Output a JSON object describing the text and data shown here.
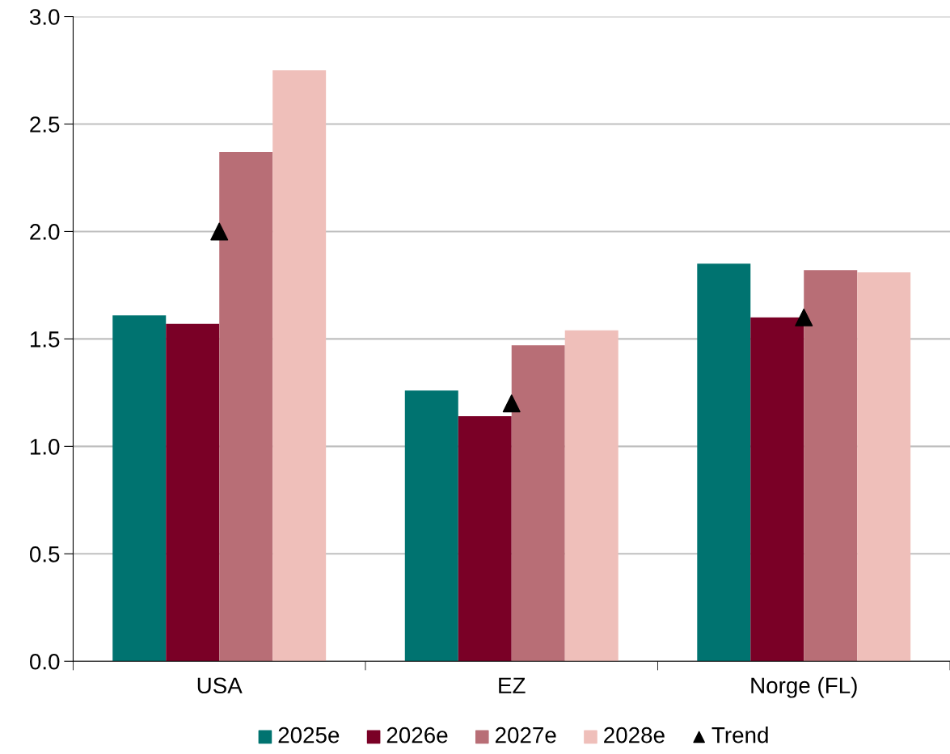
{
  "chart_data": {
    "type": "bar",
    "categories": [
      "USA",
      "EZ",
      "Norge (FL)"
    ],
    "series": [
      {
        "name": "2025e",
        "color": "#007370",
        "values": [
          1.61,
          1.26,
          1.85
        ]
      },
      {
        "name": "2026e",
        "color": "#7a0026",
        "values": [
          1.57,
          1.14,
          1.6
        ]
      },
      {
        "name": "2027e",
        "color": "#b86e76",
        "values": [
          2.37,
          1.47,
          1.82
        ]
      },
      {
        "name": "2028e",
        "color": "#efbfba",
        "values": [
          2.75,
          1.54,
          1.81
        ]
      },
      {
        "name": "Trend",
        "type": "scatter",
        "color": "#000000",
        "marker": "triangle",
        "x": [
          "USA",
          "EZ",
          "Norge (FL)"
        ],
        "values": [
          2.0,
          1.2,
          1.6
        ]
      }
    ],
    "ylim": [
      0,
      3
    ],
    "yticks": [
      {
        "value": 0,
        "label": "0.0"
      },
      {
        "value": 0.5,
        "label": "0.5"
      },
      {
        "value": 1,
        "label": "1.0"
      },
      {
        "value": 1.5,
        "label": "1.5"
      },
      {
        "value": 2,
        "label": "2.0"
      },
      {
        "value": 2.5,
        "label": "2.5"
      },
      {
        "value": 3,
        "label": "3.0"
      }
    ],
    "grid": "y",
    "legend": "bottom"
  }
}
